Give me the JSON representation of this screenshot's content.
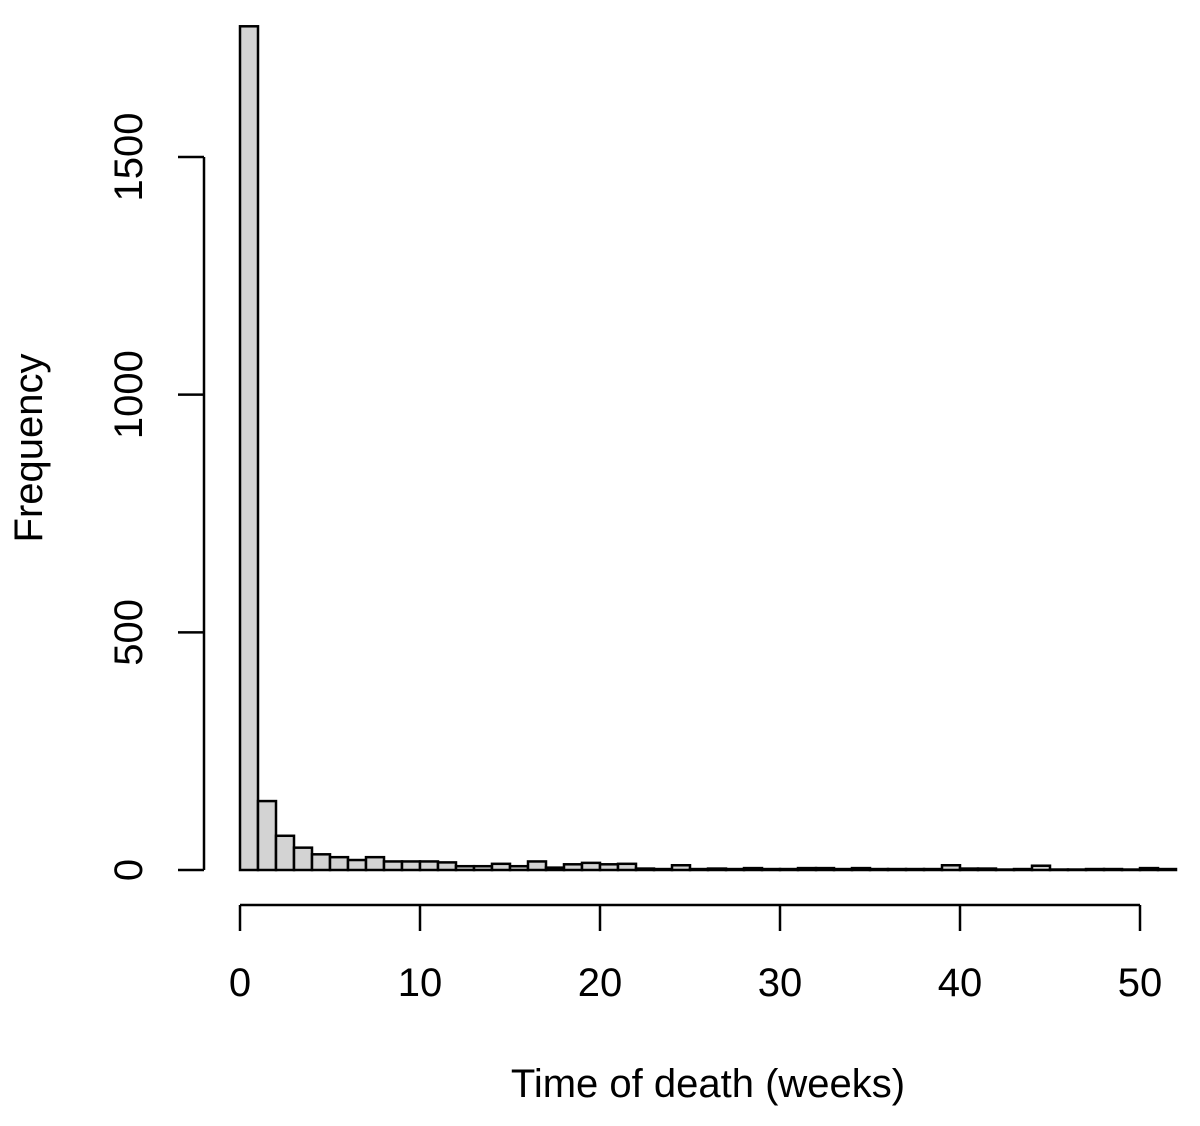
{
  "chart_data": {
    "type": "bar",
    "title": "",
    "xlabel": "Time of death (weeks)",
    "ylabel": "Frequency",
    "bin_width": 1,
    "bin_start": 0,
    "values": [
      1775,
      145,
      72,
      47,
      33,
      27,
      21,
      27,
      18,
      18,
      18,
      16,
      8,
      8,
      13,
      8,
      18,
      5,
      12,
      15,
      12,
      13,
      3,
      2,
      10,
      2,
      3,
      2,
      4,
      2,
      2,
      4,
      4,
      2,
      4,
      2,
      2,
      2,
      2,
      10,
      3,
      3,
      1,
      2,
      9,
      1,
      1,
      2,
      2,
      1,
      4,
      2
    ],
    "xticks": [
      0,
      10,
      20,
      30,
      40,
      50
    ],
    "yticks": [
      0,
      500,
      1000,
      1500
    ],
    "xlim": [
      0,
      52
    ],
    "ylim": [
      0,
      1775
    ],
    "bar_fill": "#d3d3d3",
    "bar_stroke": "#000000",
    "grid": false
  }
}
